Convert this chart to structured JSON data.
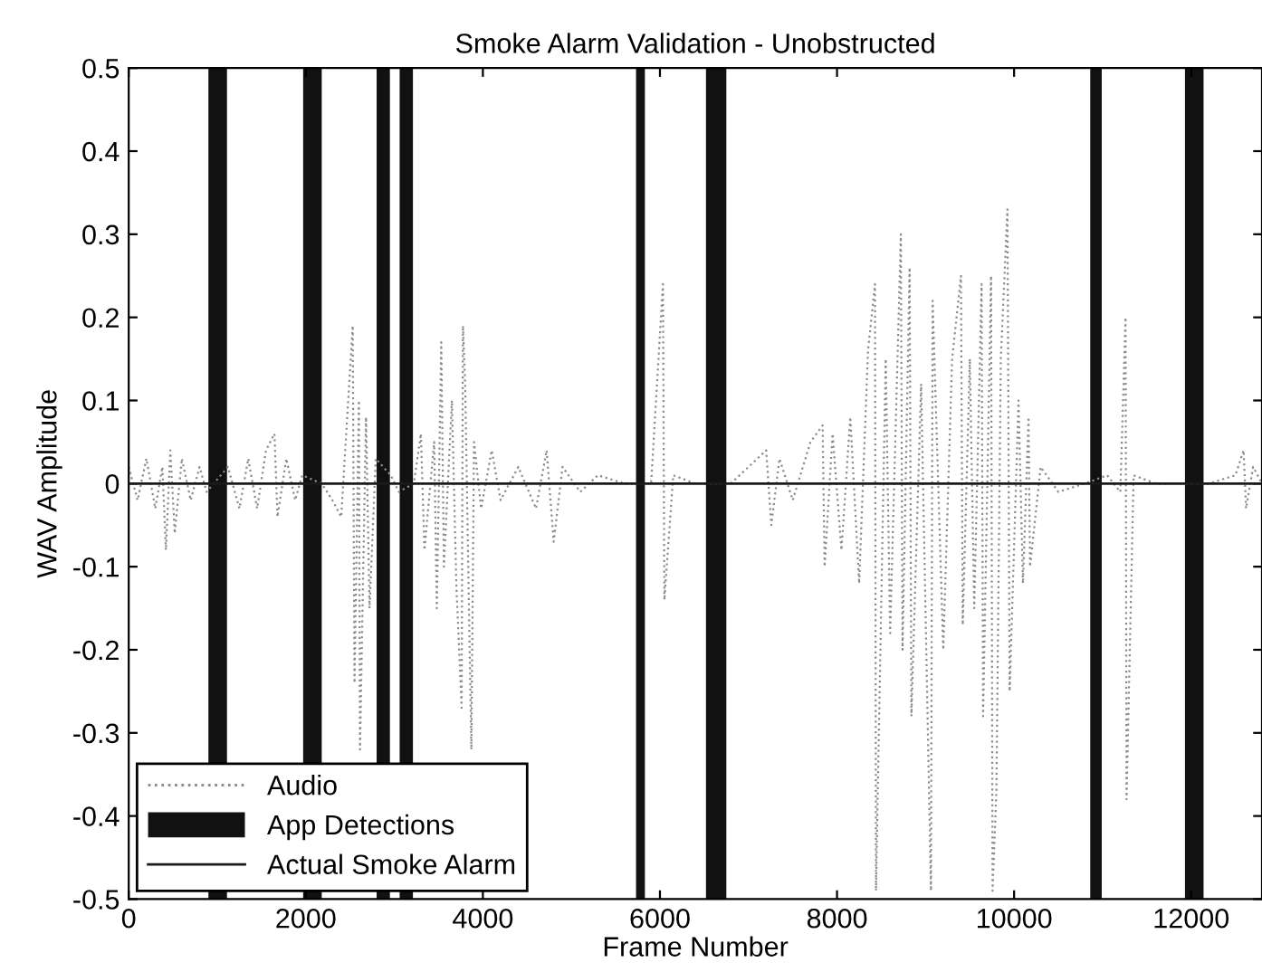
{
  "chart_data": {
    "type": "line",
    "title": "Smoke Alarm Validation - Unobstructed",
    "xlabel": "Frame Number",
    "ylabel": "WAV Amplitude",
    "series": [
      {
        "name": "Audio",
        "color": "#8c8c8c",
        "line_style": "dotted",
        "x": [
          0,
          100,
          200,
          300,
          380,
          420,
          470,
          520,
          600,
          700,
          800,
          880,
          1120,
          1250,
          1350,
          1450,
          1550,
          1646,
          1680,
          1780,
          1880,
          1960,
          2180,
          2300,
          2400,
          2530,
          2550,
          2600,
          2612,
          2680,
          2720,
          2790,
          2960,
          3050,
          3220,
          3300,
          3340,
          3450,
          3480,
          3530,
          3560,
          3650,
          3700,
          3760,
          3775,
          3800,
          3870,
          3900,
          3980,
          4100,
          4200,
          4400,
          4600,
          4720,
          4800,
          4900,
          5100,
          5300,
          5600,
          5900,
          6034,
          6050,
          6150,
          6400,
          6800,
          7200,
          7258,
          7350,
          7500,
          7700,
          7837,
          7860,
          7950,
          8050,
          8150,
          8250,
          8350,
          8429,
          8440,
          8550,
          8600,
          8721,
          8740,
          8820,
          8840,
          8950,
          9061,
          9080,
          9200,
          9300,
          9400,
          9420,
          9500,
          9550,
          9633,
          9650,
          9740,
          9757,
          9800,
          9850,
          9925,
          9950,
          10050,
          10100,
          10163,
          10180,
          10300,
          10500,
          10800,
          11050,
          11200,
          11259,
          11270,
          11350,
          11600,
          11900,
          12200,
          12500,
          12592,
          12620,
          12700,
          12800
        ],
        "values": [
          0.02,
          -0.02,
          0.03,
          -0.03,
          0.02,
          -0.08,
          0.04,
          -0.06,
          0.03,
          -0.02,
          0.02,
          -0.01,
          0.02,
          -0.03,
          0.03,
          -0.03,
          0.04,
          0.06,
          -0.04,
          0.03,
          -0.02,
          0.01,
          0.0,
          -0.02,
          -0.04,
          0.19,
          -0.24,
          0.1,
          -0.32,
          0.08,
          -0.15,
          0.03,
          0.01,
          -0.01,
          0.0,
          0.06,
          -0.08,
          0.05,
          -0.15,
          0.17,
          -0.1,
          0.1,
          -0.12,
          -0.27,
          0.19,
          0.12,
          -0.32,
          0.05,
          -0.03,
          0.04,
          -0.02,
          0.02,
          -0.03,
          0.04,
          -0.07,
          0.02,
          -0.01,
          0.01,
          0.0,
          0.0,
          0.24,
          -0.14,
          0.01,
          0.0,
          0.0,
          0.04,
          -0.05,
          0.03,
          -0.02,
          0.05,
          0.07,
          -0.1,
          0.06,
          -0.08,
          0.08,
          -0.12,
          0.16,
          0.24,
          -0.49,
          0.15,
          -0.18,
          0.3,
          -0.2,
          0.26,
          -0.28,
          0.12,
          -0.49,
          0.22,
          -0.2,
          0.15,
          0.25,
          -0.17,
          0.15,
          -0.15,
          0.24,
          -0.28,
          0.25,
          -0.49,
          -0.37,
          0.15,
          0.33,
          -0.25,
          0.1,
          -0.12,
          0.08,
          -0.1,
          0.02,
          -0.01,
          0.0,
          0.01,
          -0.01,
          0.2,
          -0.38,
          0.01,
          0.0,
          0.0,
          0.0,
          0.01,
          0.04,
          -0.03,
          0.02,
          0.0
        ]
      },
      {
        "name": "Actual Smoke Alarm",
        "color": "#1a1a1a",
        "line_style": "solid",
        "x": [
          0,
          12800
        ],
        "values": [
          0,
          0
        ]
      }
    ],
    "bands": [
      {
        "axis": "x",
        "from": 900,
        "to": 1110,
        "color": "#111111",
        "label": "App Detections"
      },
      {
        "axis": "x",
        "from": 1970,
        "to": 2180,
        "color": "#111111"
      },
      {
        "axis": "x",
        "from": 2800,
        "to": 2950,
        "color": "#111111"
      },
      {
        "axis": "x",
        "from": 3060,
        "to": 3210,
        "color": "#111111"
      },
      {
        "axis": "x",
        "from": 5730,
        "to": 5830,
        "color": "#111111"
      },
      {
        "axis": "x",
        "from": 6520,
        "to": 6750,
        "color": "#111111"
      },
      {
        "axis": "x",
        "from": 10860,
        "to": 10990,
        "color": "#111111"
      },
      {
        "axis": "x",
        "from": 11930,
        "to": 12140,
        "color": "#111111"
      }
    ],
    "xlim": [
      0,
      12800
    ],
    "xticks": [
      0,
      2000,
      4000,
      6000,
      8000,
      10000,
      12000
    ],
    "ylim": [
      -0.5,
      0.5
    ],
    "yticks": [
      -0.5,
      -0.4,
      -0.3,
      -0.2,
      -0.1,
      0,
      0.1,
      0.2,
      0.3,
      0.4,
      0.5
    ],
    "grid": false,
    "legend": "bottom left",
    "marker": "none"
  }
}
